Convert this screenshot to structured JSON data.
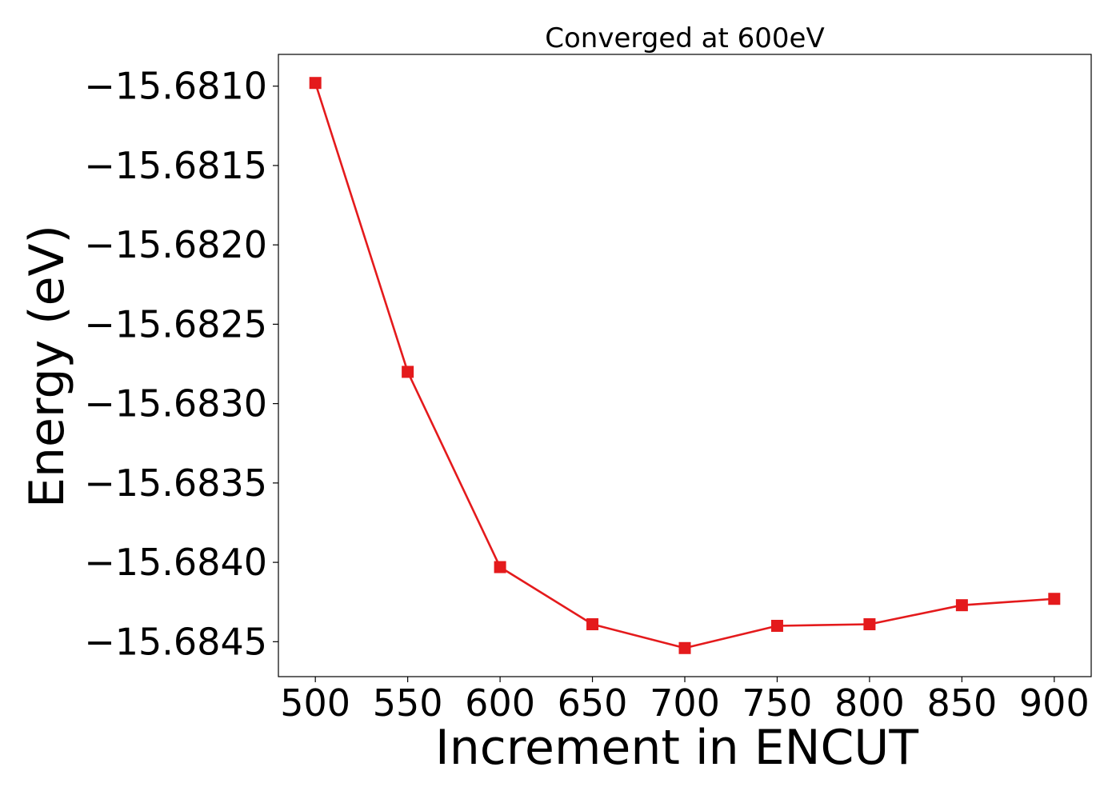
{
  "chart_data": {
    "type": "line",
    "title": "Converged at 600eV",
    "xlabel": "Increment in ENCUT",
    "ylabel": "Energy (eV)",
    "x": [
      500,
      550,
      600,
      650,
      700,
      750,
      800,
      850,
      900
    ],
    "series": [
      {
        "values": [
          -15.68098,
          -15.6828,
          -15.68403,
          -15.68439,
          -15.68454,
          -15.6844,
          -15.68439,
          -15.68427,
          -15.68423
        ],
        "color": "#e41a1c",
        "marker": "square"
      }
    ],
    "x_ticks": [
      500,
      550,
      600,
      650,
      700,
      750,
      800,
      850,
      900
    ],
    "x_tick_labels": [
      "500",
      "550",
      "600",
      "650",
      "700",
      "750",
      "800",
      "850",
      "900"
    ],
    "y_ticks": [
      -15.681,
      -15.6815,
      -15.682,
      -15.6825,
      -15.683,
      -15.6835,
      -15.684,
      -15.6845
    ],
    "y_tick_labels": [
      "−15.6810",
      "−15.6815",
      "−15.6820",
      "−15.6825",
      "−15.6830",
      "−15.6835",
      "−15.6840",
      "−15.6845"
    ],
    "xlim": [
      480,
      920
    ],
    "ylim": [
      -15.68472,
      -15.6808
    ],
    "grid": false,
    "legend": "none"
  }
}
